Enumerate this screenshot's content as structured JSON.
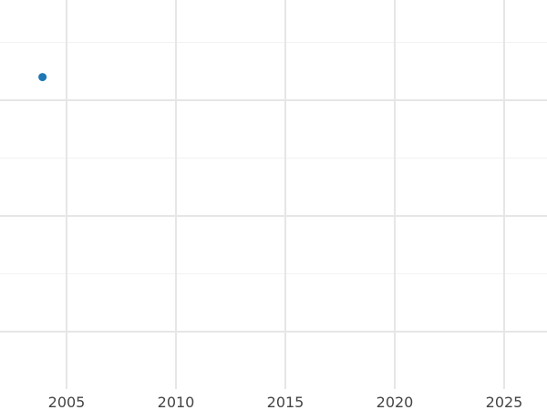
{
  "chart_data": {
    "type": "scatter",
    "title": "",
    "xlabel": "",
    "ylabel": "",
    "xlim": [
      2001,
      2026.9
    ],
    "ylim": [
      0.5,
      3.87
    ],
    "x_ticks": [
      2005,
      2010,
      2015,
      2020,
      2025
    ],
    "x_tick_labels": [
      "2005",
      "2010",
      "2015",
      "2020",
      "2025"
    ],
    "y_major_gridlines": [
      1,
      2,
      3
    ],
    "y_minor_gridlines": [
      1.5,
      2.5,
      3.5
    ],
    "y_tick_labels_shown": false,
    "grid": true,
    "points": [
      {
        "x": 2003.9,
        "y": 3.2
      }
    ],
    "colors": {
      "point": "#1f77b4",
      "grid_major": "#e6e6e6",
      "grid_minor": "#f2f2f2"
    }
  }
}
